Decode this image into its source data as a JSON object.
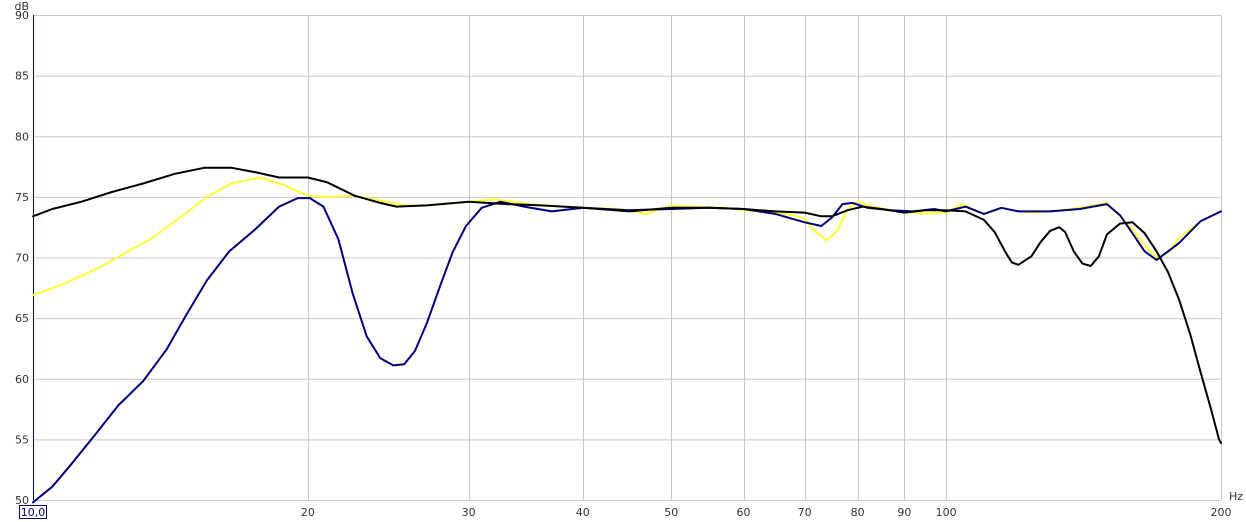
{
  "chart_data": {
    "type": "line",
    "xscale": "log",
    "xlim": [
      10,
      200
    ],
    "ylim": [
      50,
      90
    ],
    "grid": true,
    "xlabel": "Hz",
    "ylabel": "dB",
    "x_min_label": "10,0",
    "x_ticks": [
      20,
      30,
      40,
      50,
      60,
      70,
      80,
      90,
      100,
      200
    ],
    "x_tick_labels": [
      "20",
      "30",
      "40",
      "50",
      "60",
      "70",
      "80",
      "90",
      "100",
      "200"
    ],
    "y_ticks": [
      50,
      55,
      60,
      65,
      70,
      75,
      80,
      85,
      90
    ],
    "y_tick_labels": [
      "50",
      "55",
      "60",
      "65",
      "70",
      "75",
      "80",
      "85",
      "90"
    ],
    "series": [
      {
        "color": "#ffff33",
        "points": [
          [
            10,
            66.9
          ],
          [
            10.8,
            67.8
          ],
          [
            11.7,
            69.0
          ],
          [
            12.5,
            70.2
          ],
          [
            13.5,
            71.6
          ],
          [
            14.5,
            73.3
          ],
          [
            15.5,
            75.0
          ],
          [
            16.5,
            76.1
          ],
          [
            17.7,
            76.6
          ],
          [
            18.8,
            76.0
          ],
          [
            20,
            75.1
          ],
          [
            21,
            75.0
          ],
          [
            22.5,
            75.1
          ],
          [
            24,
            74.7
          ],
          [
            25.5,
            74.3
          ],
          [
            27,
            74.3
          ],
          [
            30,
            74.6
          ],
          [
            32,
            74.8
          ],
          [
            35,
            74.4
          ],
          [
            40,
            74.1
          ],
          [
            44,
            74.0
          ],
          [
            47,
            73.6
          ],
          [
            50,
            74.3
          ],
          [
            53,
            74.2
          ],
          [
            57,
            74.1
          ],
          [
            62,
            73.8
          ],
          [
            67,
            73.6
          ],
          [
            70,
            73.2
          ],
          [
            72,
            72.1
          ],
          [
            74,
            71.4
          ],
          [
            76,
            72.2
          ],
          [
            78,
            74.0
          ],
          [
            80,
            74.6
          ],
          [
            83,
            74.2
          ],
          [
            87,
            73.9
          ],
          [
            90,
            73.8
          ],
          [
            95,
            73.6
          ],
          [
            100,
            73.7
          ],
          [
            104,
            74.4
          ],
          [
            110,
            73.6
          ],
          [
            115,
            74.1
          ],
          [
            120,
            73.8
          ],
          [
            125,
            73.7
          ],
          [
            130,
            73.8
          ],
          [
            140,
            74.1
          ],
          [
            150,
            74.5
          ],
          [
            155,
            73.4
          ],
          [
            160,
            72.3
          ],
          [
            165,
            71.0
          ],
          [
            170,
            70.0
          ],
          [
            175,
            70.4
          ],
          [
            180,
            71.6
          ],
          [
            190,
            73.0
          ],
          [
            200,
            73.8
          ]
        ]
      },
      {
        "color": "#000080",
        "points": [
          [
            10,
            49.8
          ],
          [
            10.5,
            51.1
          ],
          [
            11,
            52.9
          ],
          [
            11.7,
            55.4
          ],
          [
            12.4,
            57.8
          ],
          [
            13.2,
            59.8
          ],
          [
            14.0,
            62.4
          ],
          [
            14.7,
            65.2
          ],
          [
            15.5,
            68.1
          ],
          [
            16.4,
            70.5
          ],
          [
            17.5,
            72.3
          ],
          [
            18.6,
            74.2
          ],
          [
            19.5,
            74.9
          ],
          [
            20.1,
            74.9
          ],
          [
            20.8,
            74.2
          ],
          [
            21.6,
            71.5
          ],
          [
            22.4,
            67.0
          ],
          [
            23.2,
            63.5
          ],
          [
            24.0,
            61.7
          ],
          [
            24.8,
            61.1
          ],
          [
            25.5,
            61.2
          ],
          [
            26.2,
            62.3
          ],
          [
            27.0,
            64.6
          ],
          [
            27.9,
            67.6
          ],
          [
            28.8,
            70.4
          ],
          [
            29.8,
            72.6
          ],
          [
            31,
            74.1
          ],
          [
            32.5,
            74.6
          ],
          [
            34.5,
            74.2
          ],
          [
            37,
            73.8
          ],
          [
            40,
            74.1
          ],
          [
            45,
            73.9
          ],
          [
            50,
            74.0
          ],
          [
            55,
            74.1
          ],
          [
            60,
            74.0
          ],
          [
            65,
            73.6
          ],
          [
            70,
            72.9
          ],
          [
            73,
            72.6
          ],
          [
            75,
            73.3
          ],
          [
            77,
            74.4
          ],
          [
            79,
            74.5
          ],
          [
            82,
            74.1
          ],
          [
            87,
            73.9
          ],
          [
            92,
            73.8
          ],
          [
            97,
            74.0
          ],
          [
            100,
            73.8
          ],
          [
            105,
            74.2
          ],
          [
            110,
            73.6
          ],
          [
            115,
            74.1
          ],
          [
            120,
            73.8
          ],
          [
            130,
            73.8
          ],
          [
            140,
            74.0
          ],
          [
            150,
            74.4
          ],
          [
            155,
            73.5
          ],
          [
            160,
            72.0
          ],
          [
            165,
            70.5
          ],
          [
            170,
            69.8
          ],
          [
            175,
            70.5
          ],
          [
            180,
            71.2
          ],
          [
            190,
            73.0
          ],
          [
            200,
            73.8
          ]
        ]
      },
      {
        "color": "#000000",
        "points": [
          [
            10,
            73.4
          ],
          [
            10.5,
            74.0
          ],
          [
            11.3,
            74.6
          ],
          [
            12.2,
            75.4
          ],
          [
            13.2,
            76.1
          ],
          [
            14.3,
            76.9
          ],
          [
            15.4,
            77.4
          ],
          [
            16.5,
            77.4
          ],
          [
            17.6,
            77.0
          ],
          [
            18.6,
            76.6
          ],
          [
            20,
            76.6
          ],
          [
            21,
            76.2
          ],
          [
            22.5,
            75.1
          ],
          [
            24,
            74.5
          ],
          [
            25,
            74.2
          ],
          [
            27,
            74.3
          ],
          [
            30,
            74.6
          ],
          [
            33,
            74.4
          ],
          [
            36,
            74.3
          ],
          [
            40,
            74.1
          ],
          [
            45,
            73.8
          ],
          [
            50,
            74.1
          ],
          [
            55,
            74.1
          ],
          [
            60,
            74.0
          ],
          [
            65,
            73.8
          ],
          [
            70,
            73.7
          ],
          [
            73,
            73.4
          ],
          [
            75,
            73.4
          ],
          [
            78,
            73.9
          ],
          [
            81,
            74.2
          ],
          [
            85,
            74.0
          ],
          [
            90,
            73.7
          ],
          [
            95,
            73.9
          ],
          [
            100,
            73.9
          ],
          [
            105,
            73.8
          ],
          [
            110,
            73.1
          ],
          [
            113,
            72.1
          ],
          [
            116,
            70.5
          ],
          [
            118,
            69.6
          ],
          [
            120,
            69.4
          ],
          [
            124,
            70.1
          ],
          [
            127,
            71.3
          ],
          [
            130,
            72.2
          ],
          [
            133,
            72.5
          ],
          [
            135,
            72.1
          ],
          [
            138,
            70.5
          ],
          [
            141,
            69.5
          ],
          [
            144,
            69.3
          ],
          [
            147,
            70.1
          ],
          [
            150,
            71.9
          ],
          [
            155,
            72.8
          ],
          [
            160,
            72.9
          ],
          [
            165,
            72.0
          ],
          [
            170,
            70.5
          ],
          [
            175,
            68.8
          ],
          [
            180,
            66.5
          ],
          [
            185,
            63.7
          ],
          [
            190,
            60.5
          ],
          [
            195,
            57.5
          ],
          [
            199,
            55.0
          ],
          [
            200,
            54.7
          ]
        ]
      }
    ]
  }
}
